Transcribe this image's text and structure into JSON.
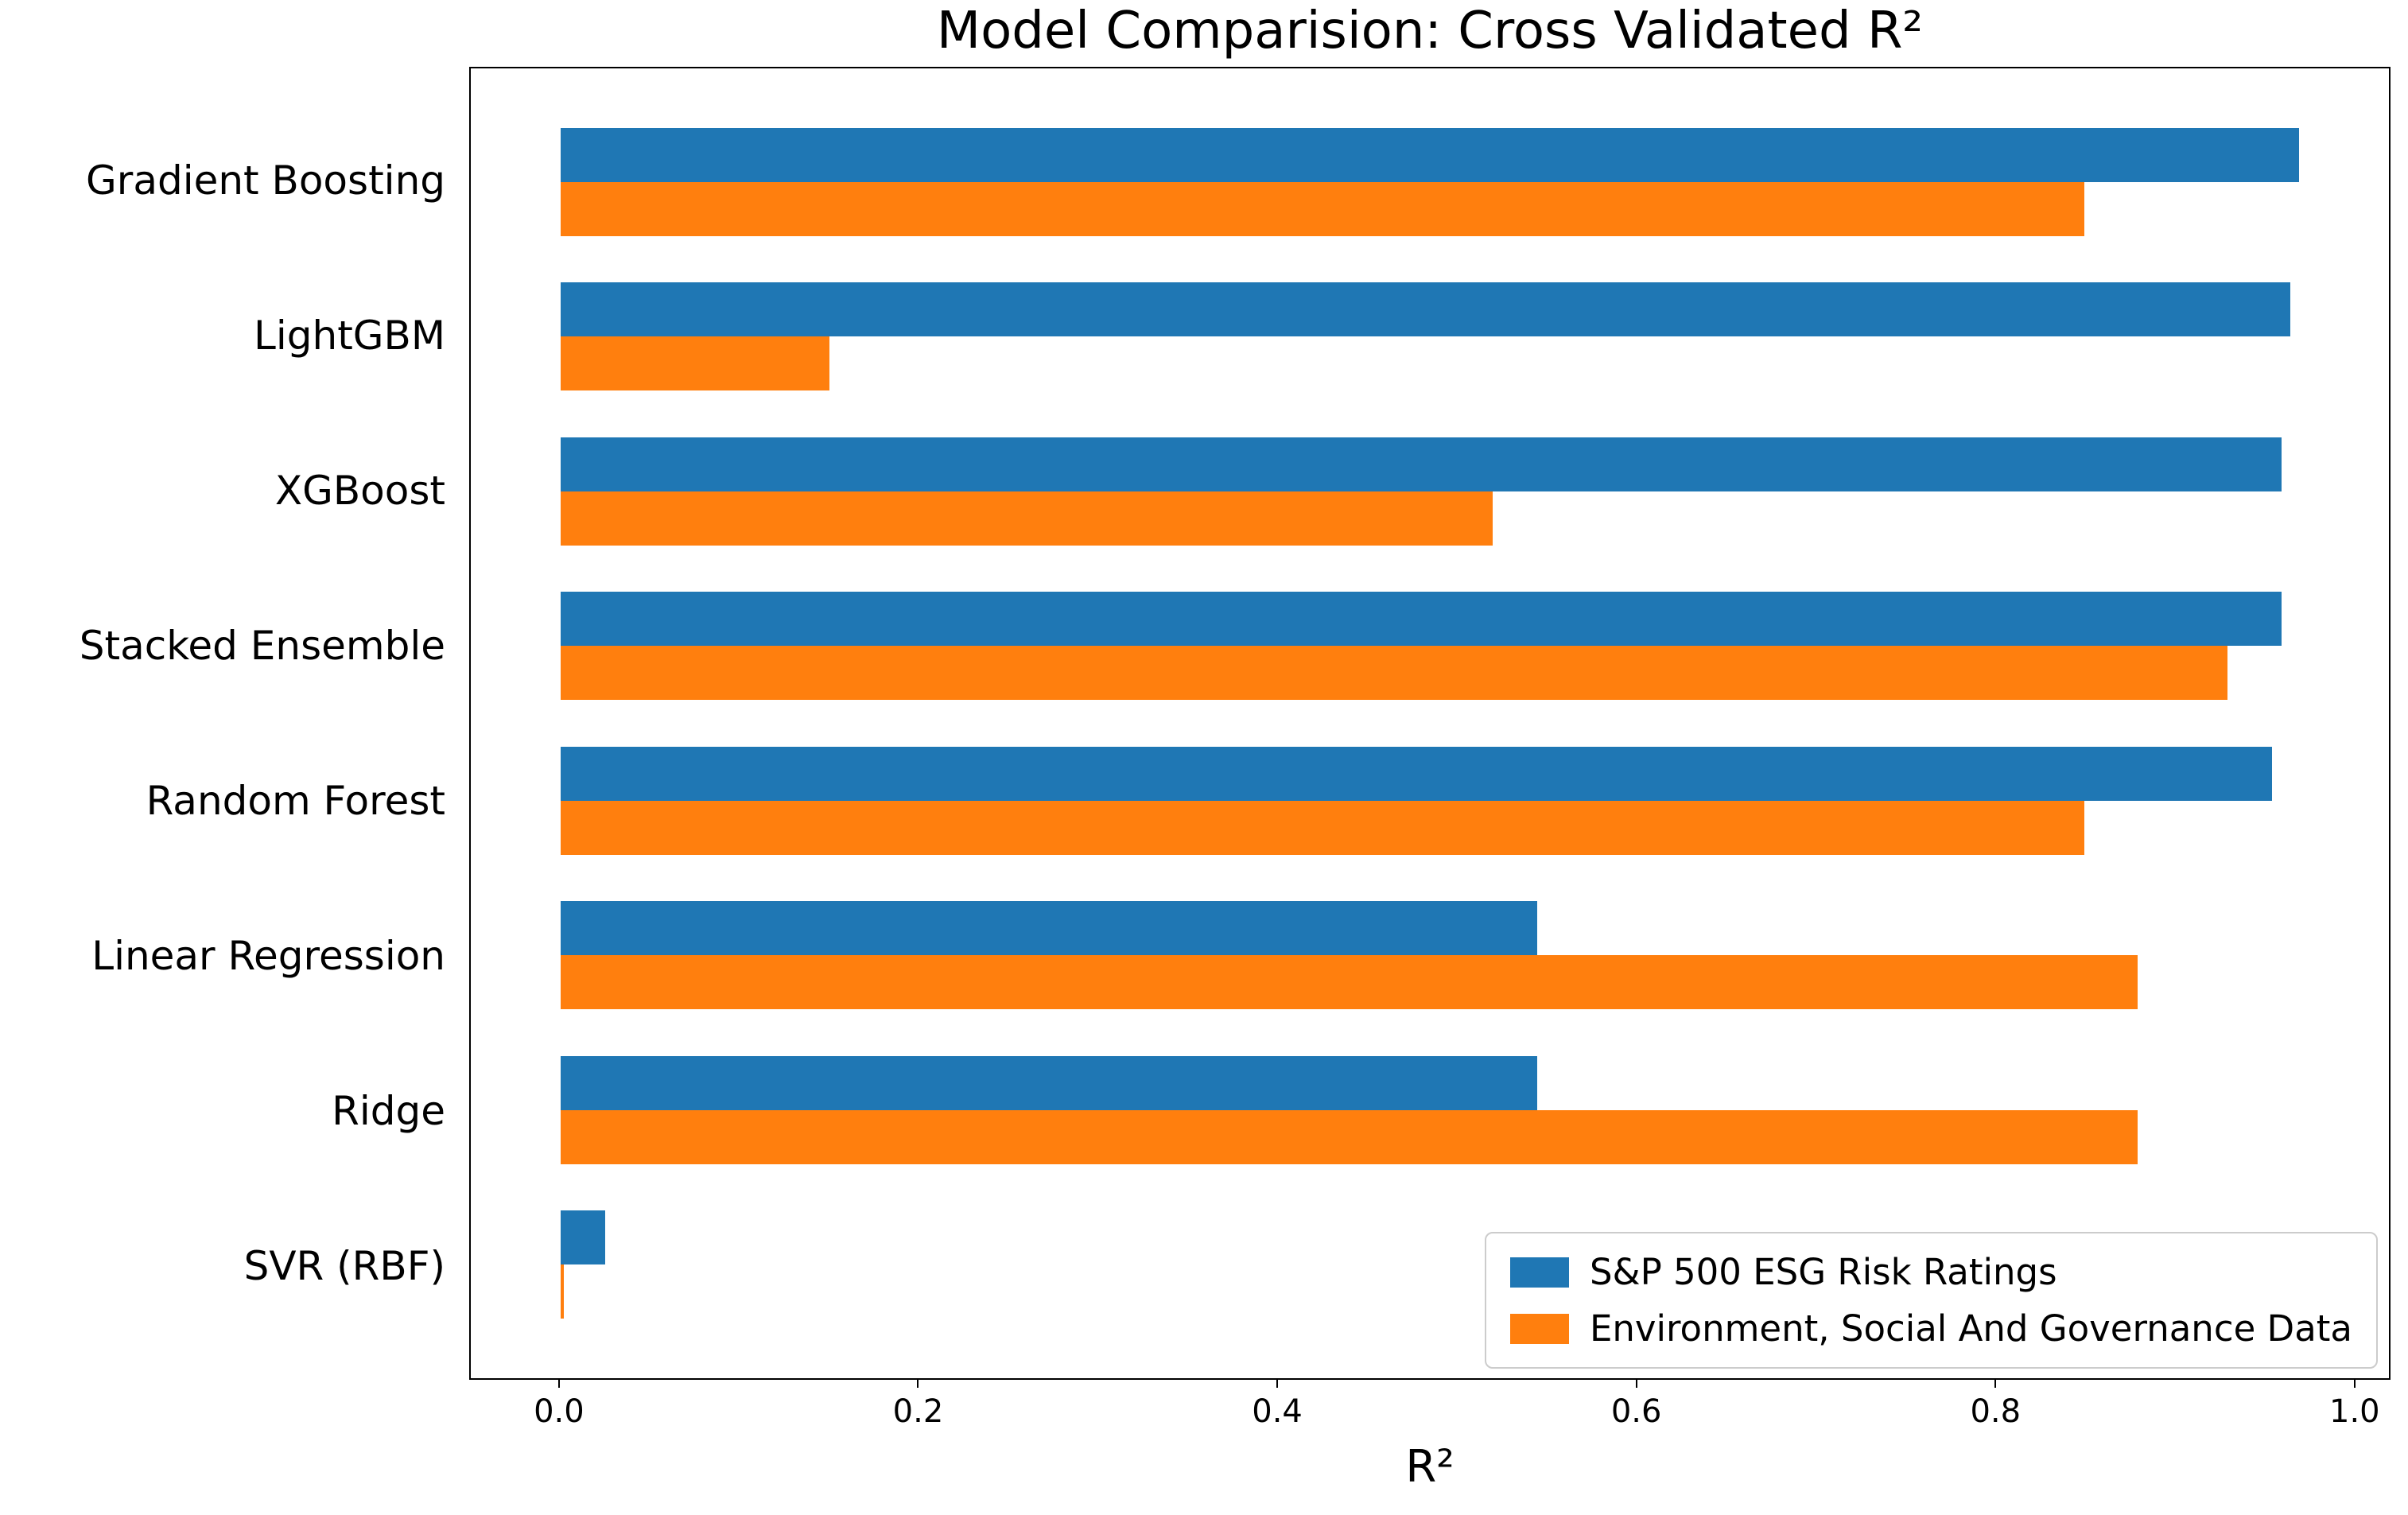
{
  "chart_data": {
    "type": "bar",
    "orientation": "horizontal",
    "title": "Model Comparision: Cross Validated R²",
    "xlabel": "R²",
    "ylabel": "",
    "categories": [
      "Gradient Boosting",
      "LightGBM",
      "XGBoost",
      "Stacked Ensemble",
      "Random Forest",
      "Linear Regression",
      "Ridge",
      "SVR (RBF)"
    ],
    "series": [
      {
        "name": "S&P 500 ESG Risk Ratings",
        "color": "#1f77b4",
        "values": [
          0.97,
          0.965,
          0.96,
          0.96,
          0.955,
          0.545,
          0.545,
          0.025
        ]
      },
      {
        "name": "Environment, Social And Governance Data",
        "color": "#ff7f0e",
        "values": [
          0.85,
          0.15,
          0.52,
          0.93,
          0.85,
          0.88,
          0.88,
          0.002
        ]
      }
    ],
    "xlim": [
      -0.05,
      1.02
    ],
    "xticks": [
      0.0,
      0.2,
      0.4,
      0.6,
      0.8,
      1.0
    ],
    "legend_position": "lower right",
    "grid": false,
    "background_color": "#ffffff",
    "axis_color": "#000000"
  }
}
